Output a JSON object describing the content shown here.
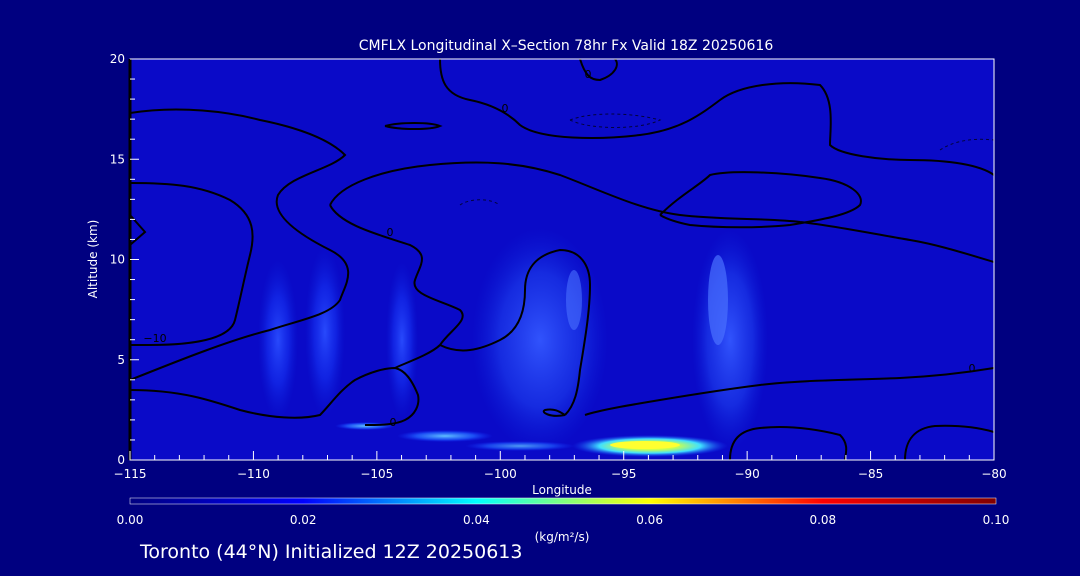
{
  "chart_data": {
    "type": "heatmap",
    "title": "CMFLX Longitudinal X–Section 78hr  Fx Valid 18Z 20250616",
    "xlabel": "Longitude",
    "ylabel": "Altitude (km)",
    "xlim": [
      -115,
      -80
    ],
    "ylim": [
      0,
      20
    ],
    "x_ticks": [
      -115,
      -110,
      -105,
      -100,
      -95,
      -90,
      -85,
      -80
    ],
    "x_tick_labels": [
      "−115",
      "−110",
      "−105",
      "−100",
      "−95",
      "−90",
      "−85",
      "−80"
    ],
    "y_ticks": [
      0,
      5,
      10,
      15,
      20
    ],
    "y_tick_labels": [
      "0",
      "5",
      "10",
      "15",
      "20"
    ],
    "colorbar": {
      "min": 0.0,
      "max": 0.1,
      "ticks": [
        0.0,
        0.02,
        0.04,
        0.06,
        0.08,
        0.1
      ],
      "tick_labels": [
        "0.00",
        "0.02",
        "0.04",
        "0.06",
        "0.08",
        "0.10"
      ],
      "unit_label": "(kg/m²/s)",
      "colormap": [
        "#000080",
        "#0000ff",
        "#00ffff",
        "#ffff00",
        "#ff0000",
        "#800000"
      ]
    },
    "contour_labels": [
      "0",
      "0",
      "−10",
      "0",
      "0",
      "0"
    ],
    "features": [
      {
        "lon": -109,
        "alt_bottom": 1,
        "alt_top": 9.5,
        "value": 0.01
      },
      {
        "lon": -107,
        "alt_bottom": 1,
        "alt_top": 9.8,
        "value": 0.01
      },
      {
        "lon": -104,
        "alt_bottom": 1,
        "alt_top": 9.5,
        "value": 0.008
      },
      {
        "lon": -98,
        "alt_bottom": 1,
        "alt_top": 10.5,
        "value": 0.012
      },
      {
        "lon": -90.5,
        "alt_bottom": 1,
        "alt_top": 10.8,
        "value": 0.012
      },
      {
        "lon": -94,
        "alt_bottom": 0.3,
        "alt_top": 0.9,
        "value": 0.06
      },
      {
        "lon": -101.5,
        "alt_bottom": 0.6,
        "alt_top": 1.2,
        "value": 0.025
      },
      {
        "lon": -105.5,
        "alt_bottom": 1.3,
        "alt_top": 1.7,
        "value": 0.02
      }
    ]
  },
  "footer": "Toronto (44°N) Initialized 12Z 20250613"
}
